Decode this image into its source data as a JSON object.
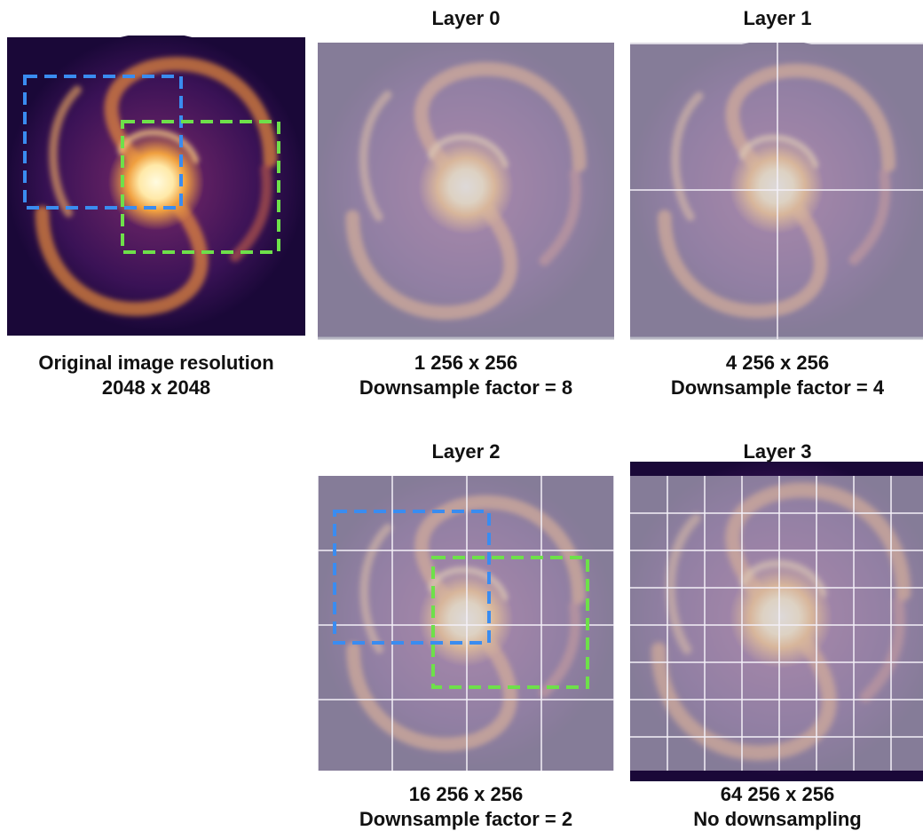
{
  "panels": [
    {
      "caption": [
        "Original image resolution",
        "2048 x 2048"
      ]
    },
    {
      "title": "Layer 0",
      "caption": [
        "1 256 x 256",
        "Downsample factor = 8"
      ]
    },
    {
      "title": "Layer 1",
      "caption": [
        "4 256 x 256",
        "Downsample factor = 4"
      ]
    },
    {
      "title": "Layer 2",
      "caption": [
        "16 256 x 256",
        "Downsample factor = 2"
      ]
    },
    {
      "title": "Layer 3",
      "caption": [
        "64 256 x 256",
        "No downsampling"
      ]
    }
  ]
}
